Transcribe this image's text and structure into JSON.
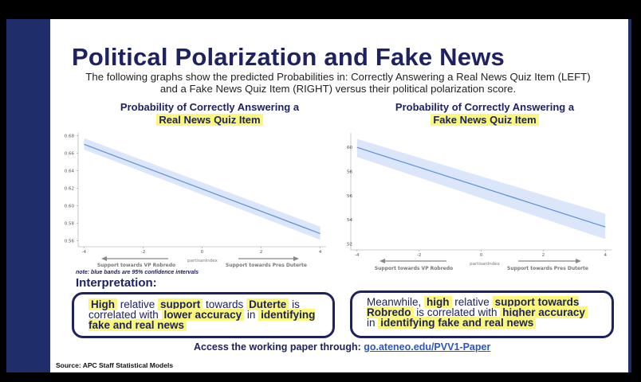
{
  "title": "Political Polarization and Fake News",
  "subtitle": "The following graphs show the predicted Probabilities in: Correctly Answering a Real News Quiz Item (LEFT) and a Fake News Quiz Item (RIGHT) versus their political polarization score.",
  "left_chart": {
    "title_line1": "Probability of Correctly Answering a",
    "title_line2": "Real News Quiz Item",
    "xlabel_left": "Support towards VP Robredo",
    "xlabel_center": "partisanIndex",
    "xlabel_right": "Support towards Pres Duterte"
  },
  "right_chart": {
    "title_line1": "Probability of Correctly Answering a",
    "title_line2": "Fake News Quiz Item",
    "xlabel_left": "Support towards VP Robredo",
    "xlabel_center": "partisanIndex",
    "xlabel_right": "Support towards Pres Duterte"
  },
  "note": "note: blue bands are 95% confidence intervals",
  "interpretation_heading": "Interpretation:",
  "box_left": {
    "w1": "High",
    "t1": " relative ",
    "w2": "support",
    "t2": " towards ",
    "w3": "Duterte",
    "t3": " is correlated with ",
    "w4": "lower accuracy",
    "t4": " in ",
    "w5": "identifying fake and real news"
  },
  "box_right": {
    "t0": "Meanwhile, ",
    "w1": "high",
    "t1": " relative ",
    "w2": "support towards Robredo",
    "t2": " is correlated with ",
    "w3": "higher  accuracy",
    "t3": " in ",
    "w4": "identifying fake and real news"
  },
  "access_text": "Access the working paper through: ",
  "access_link": "go.ateneo.edu/PVV1-Paper",
  "source": "Source: APC Staff Statistical Models",
  "colors": {
    "navy": "#1e2260",
    "highlight": "#fbf77b",
    "band": "#dbe6fb",
    "line": "#5b8fd6"
  },
  "chart_data": [
    {
      "type": "line",
      "x": [
        -4,
        4
      ],
      "series": [
        {
          "values": [
            0.67,
            0.568
          ],
          "ci_low": [
            0.664,
            0.561
          ],
          "ci_high": [
            0.677,
            0.576
          ]
        }
      ],
      "xticks": [
        -4,
        -2,
        0,
        2,
        4
      ],
      "yticks": [
        0.56,
        0.58,
        0.6,
        0.62,
        0.64,
        0.66,
        0.68
      ],
      "ytick_labels": [
        "0.56",
        "0.58",
        "0.60",
        "0.62",
        "0.64",
        "0.66",
        "0.68"
      ],
      "xlim": [
        -4.2,
        4.2
      ],
      "ylim": [
        0.553,
        0.683
      ]
    },
    {
      "type": "line",
      "x": [
        -4,
        4
      ],
      "series": [
        {
          "values": [
            0.6,
            0.534
          ],
          "ci_low": [
            0.592,
            0.524
          ],
          "ci_high": [
            0.607,
            0.545
          ]
        }
      ],
      "xticks": [
        -4,
        -2,
        0,
        2,
        4
      ],
      "yticks": [
        0.52,
        0.54,
        0.56,
        0.58,
        0.6
      ],
      "ytick_labels": [
        "52",
        "54",
        "56",
        "58",
        "60"
      ],
      "xlim": [
        -4.2,
        4.2
      ],
      "ylim": [
        0.515,
        0.612
      ]
    }
  ]
}
